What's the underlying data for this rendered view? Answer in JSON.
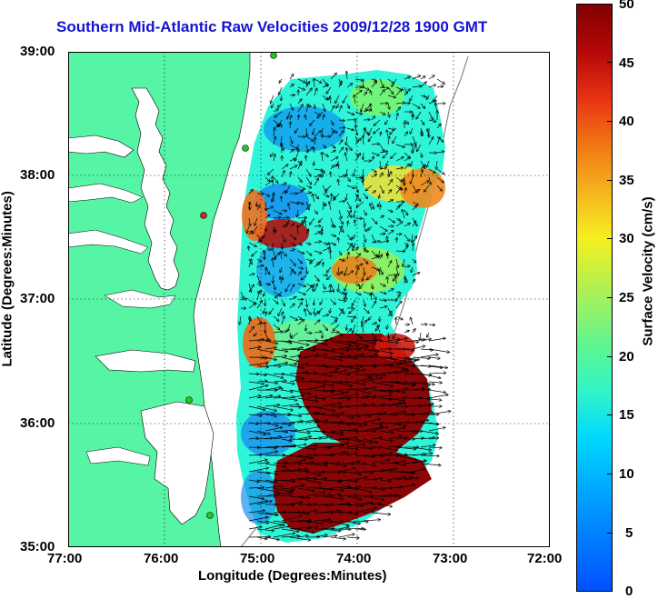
{
  "title": "Southern Mid-Atlantic Raw Velocities 2009/12/28 1900 GMT",
  "x_axis_label": "Longitude (Degrees:Minutes)",
  "y_axis_label": "Latitude (Degrees:Minutes)",
  "x_ticks": [
    "77:00",
    "76:00",
    "75:00",
    "74:00",
    "73:00",
    "72:00"
  ],
  "y_ticks": [
    "39:00",
    "38:00",
    "37:00",
    "36:00",
    "35:00"
  ],
  "colorbar": {
    "label": "Surface Velocity (cm/s)",
    "ticks": [
      "50",
      "45",
      "40",
      "35",
      "30",
      "25",
      "20",
      "15",
      "10",
      "5",
      "0"
    ],
    "min": 0,
    "max": 50
  },
  "map_extent": {
    "lon_min": -77,
    "lon_max": -72,
    "lat_min": 35,
    "lat_max": 39
  },
  "land_color": "#55f5a5",
  "grid": "dotted"
}
